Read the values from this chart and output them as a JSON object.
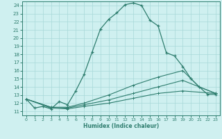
{
  "xlabel": "Humidex (Indice chaleur)",
  "bg_color": "#cff0f0",
  "grid_color": "#a8d8d8",
  "line_color": "#2e7d6e",
  "xlim": [
    -0.5,
    23.5
  ],
  "ylim": [
    10.5,
    24.5
  ],
  "xticks": [
    0,
    1,
    2,
    3,
    4,
    5,
    6,
    7,
    8,
    9,
    10,
    11,
    12,
    13,
    14,
    15,
    16,
    17,
    18,
    19,
    20,
    21,
    22,
    23
  ],
  "yticks": [
    11,
    12,
    13,
    14,
    15,
    16,
    17,
    18,
    19,
    20,
    21,
    22,
    23,
    24
  ],
  "series1": [
    [
      0,
      12.5
    ],
    [
      1,
      11.4
    ],
    [
      2,
      11.6
    ],
    [
      3,
      11.3
    ],
    [
      4,
      12.2
    ],
    [
      5,
      11.8
    ],
    [
      6,
      13.5
    ],
    [
      7,
      15.5
    ],
    [
      8,
      18.3
    ],
    [
      9,
      21.1
    ],
    [
      10,
      22.3
    ],
    [
      11,
      23.1
    ],
    [
      12,
      24.1
    ],
    [
      13,
      24.3
    ],
    [
      14,
      24.0
    ],
    [
      15,
      22.2
    ],
    [
      16,
      21.5
    ],
    [
      17,
      18.2
    ],
    [
      18,
      17.8
    ],
    [
      19,
      16.5
    ],
    [
      20,
      15.0
    ],
    [
      21,
      14.0
    ],
    [
      22,
      13.1
    ],
    [
      23,
      13.1
    ]
  ],
  "series2": [
    [
      0,
      12.5
    ],
    [
      3,
      11.5
    ],
    [
      5,
      11.5
    ],
    [
      7,
      12.0
    ],
    [
      10,
      13.0
    ],
    [
      13,
      14.2
    ],
    [
      16,
      15.2
    ],
    [
      19,
      16.0
    ],
    [
      20,
      15.0
    ],
    [
      21,
      14.0
    ],
    [
      23,
      13.2
    ]
  ],
  "series3": [
    [
      0,
      12.5
    ],
    [
      3,
      11.5
    ],
    [
      5,
      11.4
    ],
    [
      7,
      11.8
    ],
    [
      10,
      12.4
    ],
    [
      13,
      13.2
    ],
    [
      16,
      14.0
    ],
    [
      19,
      14.8
    ],
    [
      23,
      13.2
    ]
  ],
  "series4": [
    [
      0,
      12.5
    ],
    [
      3,
      11.4
    ],
    [
      5,
      11.3
    ],
    [
      7,
      11.6
    ],
    [
      10,
      12.0
    ],
    [
      13,
      12.6
    ],
    [
      16,
      13.2
    ],
    [
      19,
      13.5
    ],
    [
      23,
      13.2
    ]
  ]
}
